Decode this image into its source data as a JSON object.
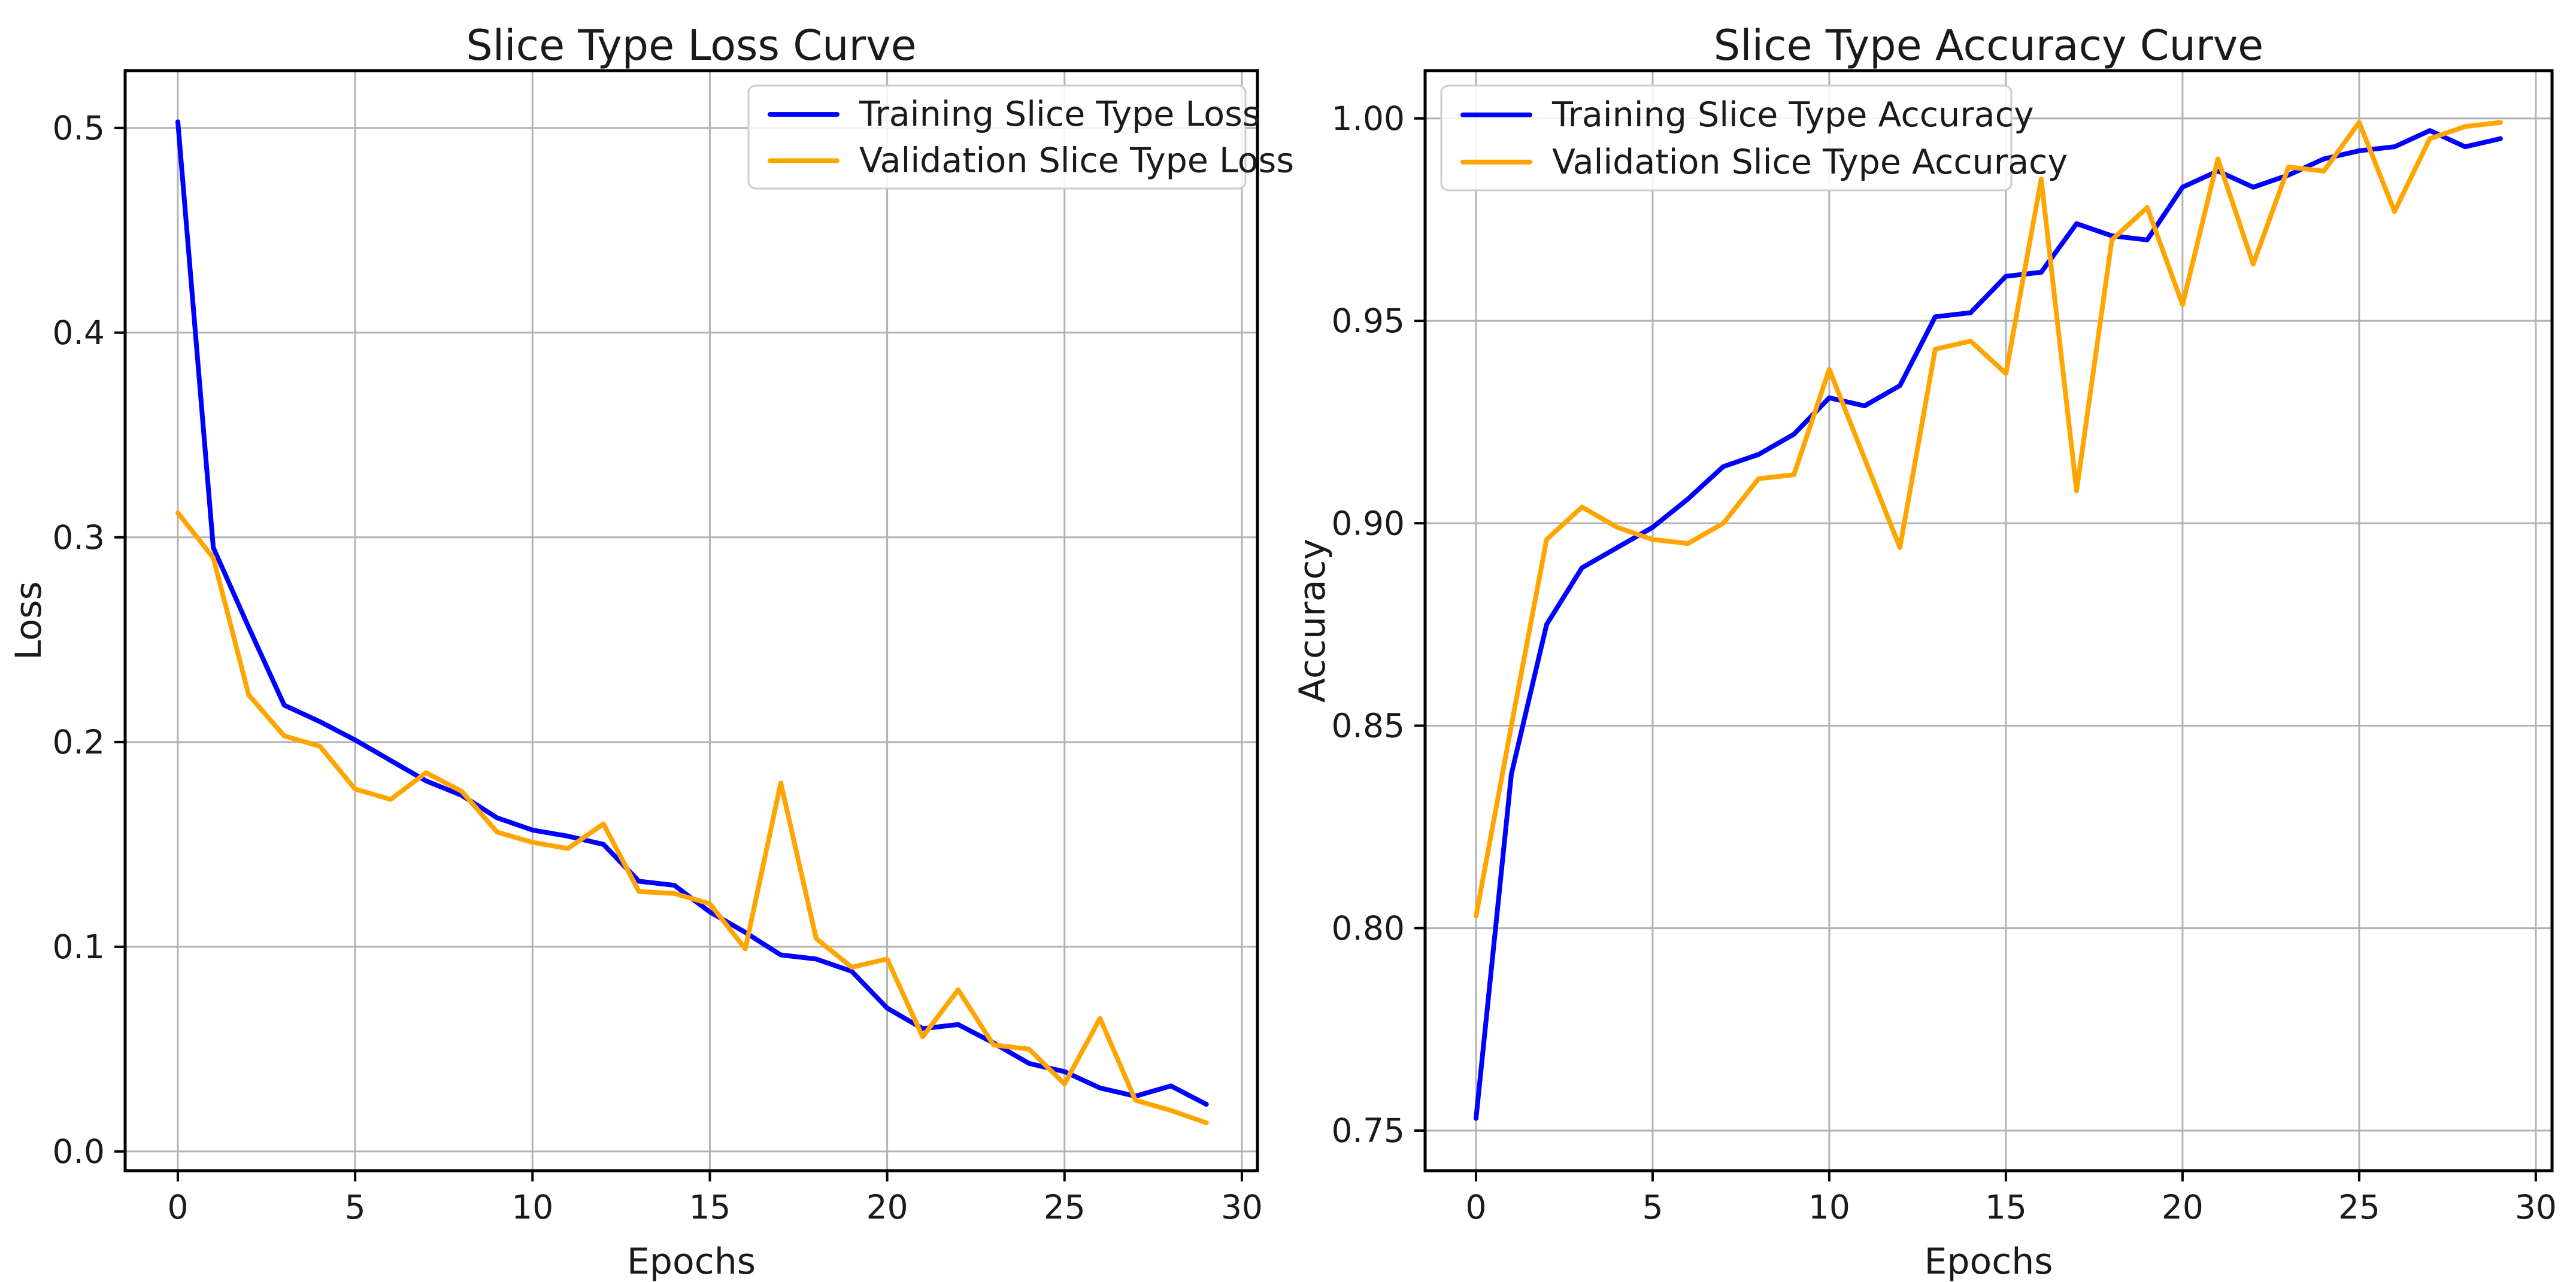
{
  "figure": {
    "background": "#ffffff",
    "grid_color": "#b3b3b3",
    "spine_color": "#000000",
    "text_color": "#1a1a1a",
    "legend_border_color": "#cccccc",
    "legend_fill": "#ffffff"
  },
  "chart_data": [
    {
      "type": "line",
      "title": "Slice Type Loss Curve",
      "xlabel": "Epochs",
      "ylabel": "Loss",
      "grid": true,
      "legend_position": "upper right",
      "x": [
        0,
        1,
        2,
        3,
        4,
        5,
        6,
        7,
        8,
        9,
        10,
        11,
        12,
        13,
        14,
        15,
        16,
        17,
        18,
        19,
        20,
        21,
        22,
        23,
        24,
        25,
        26,
        27,
        28,
        29
      ],
      "xlim": [
        -1.485,
        30.44
      ],
      "ylim": [
        -0.0094,
        0.528
      ],
      "x_tick_values": [
        0,
        5,
        10,
        15,
        20,
        25,
        30
      ],
      "x_tick_labels": [
        "0",
        "5",
        "10",
        "15",
        "20",
        "25",
        "30"
      ],
      "y_tick_values": [
        0.0,
        0.1,
        0.2,
        0.3,
        0.4,
        0.5
      ],
      "y_tick_labels": [
        "0.0",
        "0.1",
        "0.2",
        "0.3",
        "0.4",
        "0.5"
      ],
      "series": [
        {
          "name": "Training Slice Type Loss",
          "color": "#0000ff",
          "values": [
            0.503,
            0.295,
            0.256,
            0.218,
            0.21,
            0.201,
            0.191,
            0.181,
            0.174,
            0.163,
            0.157,
            0.154,
            0.15,
            0.132,
            0.13,
            0.117,
            0.107,
            0.096,
            0.094,
            0.088,
            0.07,
            0.06,
            0.062,
            0.053,
            0.043,
            0.039,
            0.031,
            0.027,
            0.032,
            0.023
          ]
        },
        {
          "name": "Validation Slice Type Loss",
          "color": "#ffa500",
          "values": [
            0.312,
            0.29,
            0.223,
            0.203,
            0.198,
            0.177,
            0.172,
            0.185,
            0.176,
            0.156,
            0.151,
            0.148,
            0.16,
            0.127,
            0.126,
            0.121,
            0.099,
            0.18,
            0.104,
            0.09,
            0.094,
            0.056,
            0.079,
            0.052,
            0.05,
            0.033,
            0.065,
            0.025,
            0.02,
            0.014
          ]
        }
      ]
    },
    {
      "type": "line",
      "title": "Slice Type Accuracy Curve",
      "xlabel": "Epochs",
      "ylabel": "Accuracy",
      "grid": true,
      "legend_position": "upper left",
      "x": [
        0,
        1,
        2,
        3,
        4,
        5,
        6,
        7,
        8,
        9,
        10,
        11,
        12,
        13,
        14,
        15,
        16,
        17,
        18,
        19,
        20,
        21,
        22,
        23,
        24,
        25,
        26,
        27,
        28,
        29
      ],
      "xlim": [
        -1.44,
        30.46
      ],
      "ylim": [
        0.7401,
        1.0118
      ],
      "x_tick_values": [
        0,
        5,
        10,
        15,
        20,
        25,
        30
      ],
      "x_tick_labels": [
        "0",
        "5",
        "10",
        "15",
        "20",
        "25",
        "30"
      ],
      "y_tick_values": [
        0.75,
        0.8,
        0.85,
        0.9,
        0.95,
        1.0
      ],
      "y_tick_labels": [
        "0.75",
        "0.80",
        "0.85",
        "0.90",
        "0.95",
        "1.00"
      ],
      "series": [
        {
          "name": "Training Slice Type Accuracy",
          "color": "#0000ff",
          "values": [
            0.753,
            0.838,
            0.875,
            0.889,
            0.894,
            0.899,
            0.906,
            0.914,
            0.917,
            0.922,
            0.931,
            0.929,
            0.934,
            0.951,
            0.952,
            0.961,
            0.962,
            0.974,
            0.971,
            0.97,
            0.983,
            0.987,
            0.983,
            0.986,
            0.99,
            0.992,
            0.993,
            0.997,
            0.993,
            0.995
          ]
        },
        {
          "name": "Validation Slice Type Accuracy",
          "color": "#ffa500",
          "values": [
            0.803,
            0.85,
            0.896,
            0.904,
            0.899,
            0.896,
            0.895,
            0.9,
            0.911,
            0.912,
            0.938,
            0.916,
            0.894,
            0.943,
            0.945,
            0.937,
            0.985,
            0.908,
            0.97,
            0.978,
            0.954,
            0.99,
            0.964,
            0.988,
            0.987,
            0.999,
            0.977,
            0.995,
            0.998,
            0.999
          ]
        }
      ]
    }
  ]
}
